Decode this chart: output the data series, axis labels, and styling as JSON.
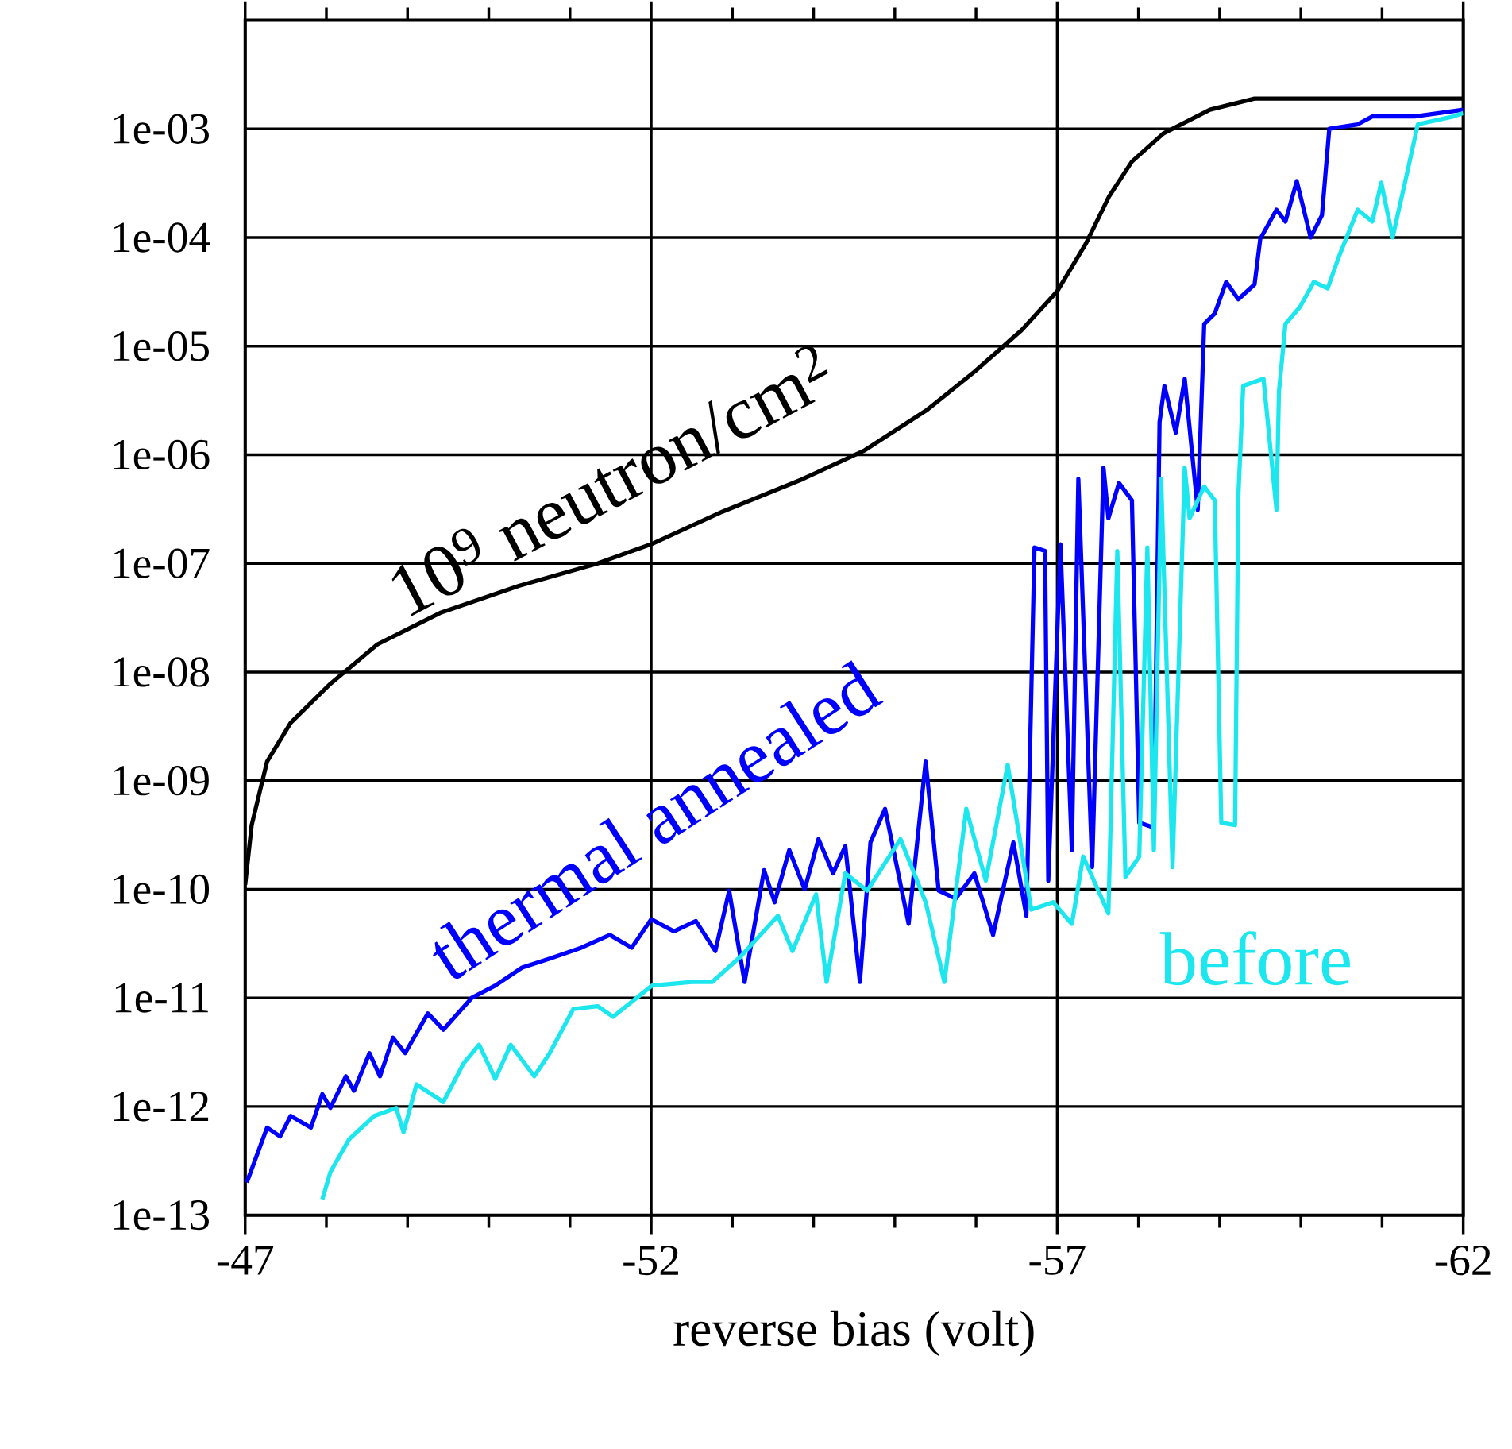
{
  "chart_data": {
    "type": "line",
    "xlabel": "reverse bias (volt)",
    "log": "y",
    "grid": true,
    "xlim": [
      -47,
      -62
    ],
    "ylim": [
      1e-13,
      0.01
    ],
    "xticks": [
      -47,
      {
        "value": -48,
        "label": null
      },
      {
        "value": -49,
        "label": null
      },
      {
        "value": -50,
        "label": null
      },
      {
        "value": -51,
        "label": null
      },
      -52,
      {
        "value": -53,
        "label": null
      },
      {
        "value": -54,
        "label": null
      },
      {
        "value": -55,
        "label": null
      },
      {
        "value": -56,
        "label": null
      },
      -57,
      {
        "value": -58,
        "label": null
      },
      {
        "value": -59,
        "label": null
      },
      {
        "value": -60,
        "label": null
      },
      {
        "value": -61,
        "label": null
      },
      -62
    ],
    "yticks": [
      {
        "value": 0.001,
        "label": "1e-03"
      },
      {
        "value": 0.0001,
        "label": "1e-04"
      },
      {
        "value": 1e-05,
        "label": "1e-05"
      },
      {
        "value": 1e-06,
        "label": "1e-06"
      },
      {
        "value": 1e-07,
        "label": "1e-07"
      },
      {
        "value": 1e-08,
        "label": "1e-08"
      },
      {
        "value": 1e-09,
        "label": "1e-09"
      },
      {
        "value": 1e-10,
        "label": "1e-10"
      },
      {
        "value": 1e-11,
        "label": "1e-11"
      },
      {
        "value": 1e-12,
        "label": "1e-12"
      },
      {
        "value": 1e-13,
        "label": "1e-13"
      }
    ],
    "series": [
      {
        "name": "10$^{9}$ neutron/cm$^{2}$",
        "color": "#000000",
        "x": [
          -47,
          -47.08,
          -47.27,
          -47.56,
          -48.05,
          -48.63,
          -49.4,
          -50.37,
          -51.34,
          -52,
          -52.88,
          -53.85,
          -54.63,
          -55.4,
          -55.98,
          -56.56,
          -57,
          -57.35,
          -57.64,
          -57.92,
          -58.31,
          -58.88,
          -59.43,
          -62
        ],
        "values": [
          1.1e-10,
          3.9e-10,
          1.5e-09,
          3.4e-09,
          7.8e-09,
          1.8e-08,
          3.5e-08,
          6.2e-08,
          1e-07,
          1.5e-07,
          3e-07,
          5.9e-07,
          1.1e-06,
          2.6e-06,
          5.8e-06,
          1.4e-05,
          3.2e-05,
          8.7e-05,
          0.00024,
          0.0005,
          0.00091,
          0.0015,
          0.0019,
          0.0019
        ]
      },
      {
        "name": "thermal annealed",
        "color": "#0000ff",
        "x": [
          -47.02,
          -47.27,
          -47.43,
          -47.56,
          -47.81,
          -47.95,
          -48.05,
          -48.24,
          -48.34,
          -48.53,
          -48.66,
          -48.82,
          -48.97,
          -49.25,
          -49.44,
          -49.79,
          -50.08,
          -50.41,
          -50.75,
          -51.14,
          -51.49,
          -51.76,
          -52.0,
          -52.28,
          -52.55,
          -52.79,
          -52.96,
          -53.15,
          -53.39,
          -53.52,
          -53.7,
          -53.89,
          -54.06,
          -54.24,
          -54.39,
          -54.57,
          -54.7,
          -54.88,
          -55.17,
          -55.38,
          -55.54,
          -55.75,
          -55.98,
          -56.21,
          -56.46,
          -56.62,
          -56.72,
          -56.85,
          -56.89,
          -57.04,
          -57.18,
          -57.26,
          -57.43,
          -57.57,
          -57.63,
          -57.76,
          -57.92,
          -58.01,
          -58.19,
          -58.26,
          -58.32,
          -58.46,
          -58.57,
          -58.73,
          -58.81,
          -58.94,
          -59.08,
          -59.23,
          -59.43,
          -59.5,
          -59.7,
          -59.81,
          -59.95,
          -60.12,
          -60.26,
          -60.35,
          -60.7,
          -60.88,
          -61.4,
          -62
        ],
        "values": [
          2e-13,
          6.4e-13,
          5.3e-13,
          8.2e-13,
          6.4e-13,
          1.3e-12,
          9.7e-13,
          1.9e-12,
          1.4e-12,
          3.1e-12,
          1.9e-12,
          4.3e-12,
          3.1e-12,
          7.2e-12,
          5.1e-12,
          1e-11,
          1.3e-11,
          1.9e-11,
          2.3e-11,
          2.9e-11,
          3.8e-11,
          2.9e-11,
          5.3e-11,
          4.1e-11,
          5.1e-11,
          2.7e-11,
          9.7e-11,
          1.4e-11,
          1.5e-10,
          7.6e-11,
          2.3e-10,
          1e-10,
          2.9e-10,
          1.4e-10,
          2.5e-10,
          1.4e-11,
          2.7e-10,
          5.5e-10,
          4.8e-11,
          1.5e-09,
          9.7e-11,
          8.2e-11,
          1.4e-10,
          3.8e-11,
          2.7e-10,
          5.7e-11,
          1.4e-07,
          1.3e-07,
          1.2e-10,
          1.5e-07,
          2.3e-10,
          6e-07,
          1.6e-10,
          7.6e-07,
          2.6e-07,
          5.5e-07,
          3.8e-07,
          4.1e-10,
          3.7e-10,
          2e-06,
          4.3e-06,
          1.6e-06,
          5e-06,
          3.1e-07,
          1.6e-05,
          2e-05,
          3.9e-05,
          2.7e-05,
          3.7e-05,
          9.7e-05,
          0.00018,
          0.00014,
          0.00033,
          0.0001,
          0.00016,
          0.001,
          0.0011,
          0.0013,
          0.0013,
          0.0015
        ]
      },
      {
        "name": "before",
        "color": "#1ce6ee",
        "x": [
          -47.95,
          -48.05,
          -48.28,
          -48.59,
          -48.86,
          -48.95,
          -49.11,
          -49.44,
          -49.69,
          -49.88,
          -50.08,
          -50.27,
          -50.56,
          -50.75,
          -51.04,
          -51.34,
          -51.53,
          -52.01,
          -52.5,
          -52.75,
          -53.1,
          -53.56,
          -53.74,
          -54.03,
          -54.16,
          -54.39,
          -54.66,
          -55.07,
          -55.38,
          -55.61,
          -55.88,
          -56.12,
          -56.39,
          -56.68,
          -56.95,
          -57.18,
          -57.32,
          -57.63,
          -57.74,
          -57.84,
          -58.01,
          -58.11,
          -58.19,
          -58.28,
          -58.42,
          -58.57,
          -58.63,
          -58.81,
          -58.94,
          -59.02,
          -59.19,
          -59.23,
          -59.29,
          -59.54,
          -59.7,
          -59.73,
          -59.81,
          -59.99,
          -60.16,
          -60.33,
          -60.47,
          -60.7,
          -60.88,
          -60.99,
          -61.13,
          -61.32,
          -61.44,
          -61.88,
          -62
        ],
        "values": [
          1.4e-13,
          2.5e-13,
          5e-13,
          8.2e-13,
          9.7e-13,
          5.8e-13,
          1.6e-12,
          1.1e-12,
          2.5e-12,
          3.7e-12,
          1.8e-12,
          3.7e-12,
          1.9e-12,
          3.1e-12,
          7.9e-12,
          8.4e-12,
          6.7e-12,
          1.3e-11,
          1.4e-11,
          1.4e-11,
          2.4e-11,
          5.7e-11,
          2.7e-11,
          9e-11,
          1.4e-11,
          1.4e-10,
          9.7e-11,
          2.9e-10,
          7.6e-11,
          1.4e-11,
          5.5e-10,
          1.2e-10,
          1.4e-09,
          6.5e-11,
          7.6e-11,
          4.8e-11,
          2e-10,
          6e-11,
          1.3e-07,
          1.3e-10,
          2e-10,
          1.4e-07,
          2.3e-10,
          6e-07,
          1.6e-10,
          7.6e-07,
          2.6e-07,
          5.1e-07,
          3.8e-07,
          4.1e-10,
          3.9e-10,
          4.1e-07,
          4.3e-06,
          5e-06,
          3.1e-07,
          3.8e-06,
          1.6e-05,
          2.3e-05,
          3.9e-05,
          3.4e-05,
          6.7e-05,
          0.00018,
          0.00014,
          0.00032,
          0.0001,
          0.00043,
          0.0011,
          0.0013,
          0.0014
        ]
      }
    ]
  }
}
